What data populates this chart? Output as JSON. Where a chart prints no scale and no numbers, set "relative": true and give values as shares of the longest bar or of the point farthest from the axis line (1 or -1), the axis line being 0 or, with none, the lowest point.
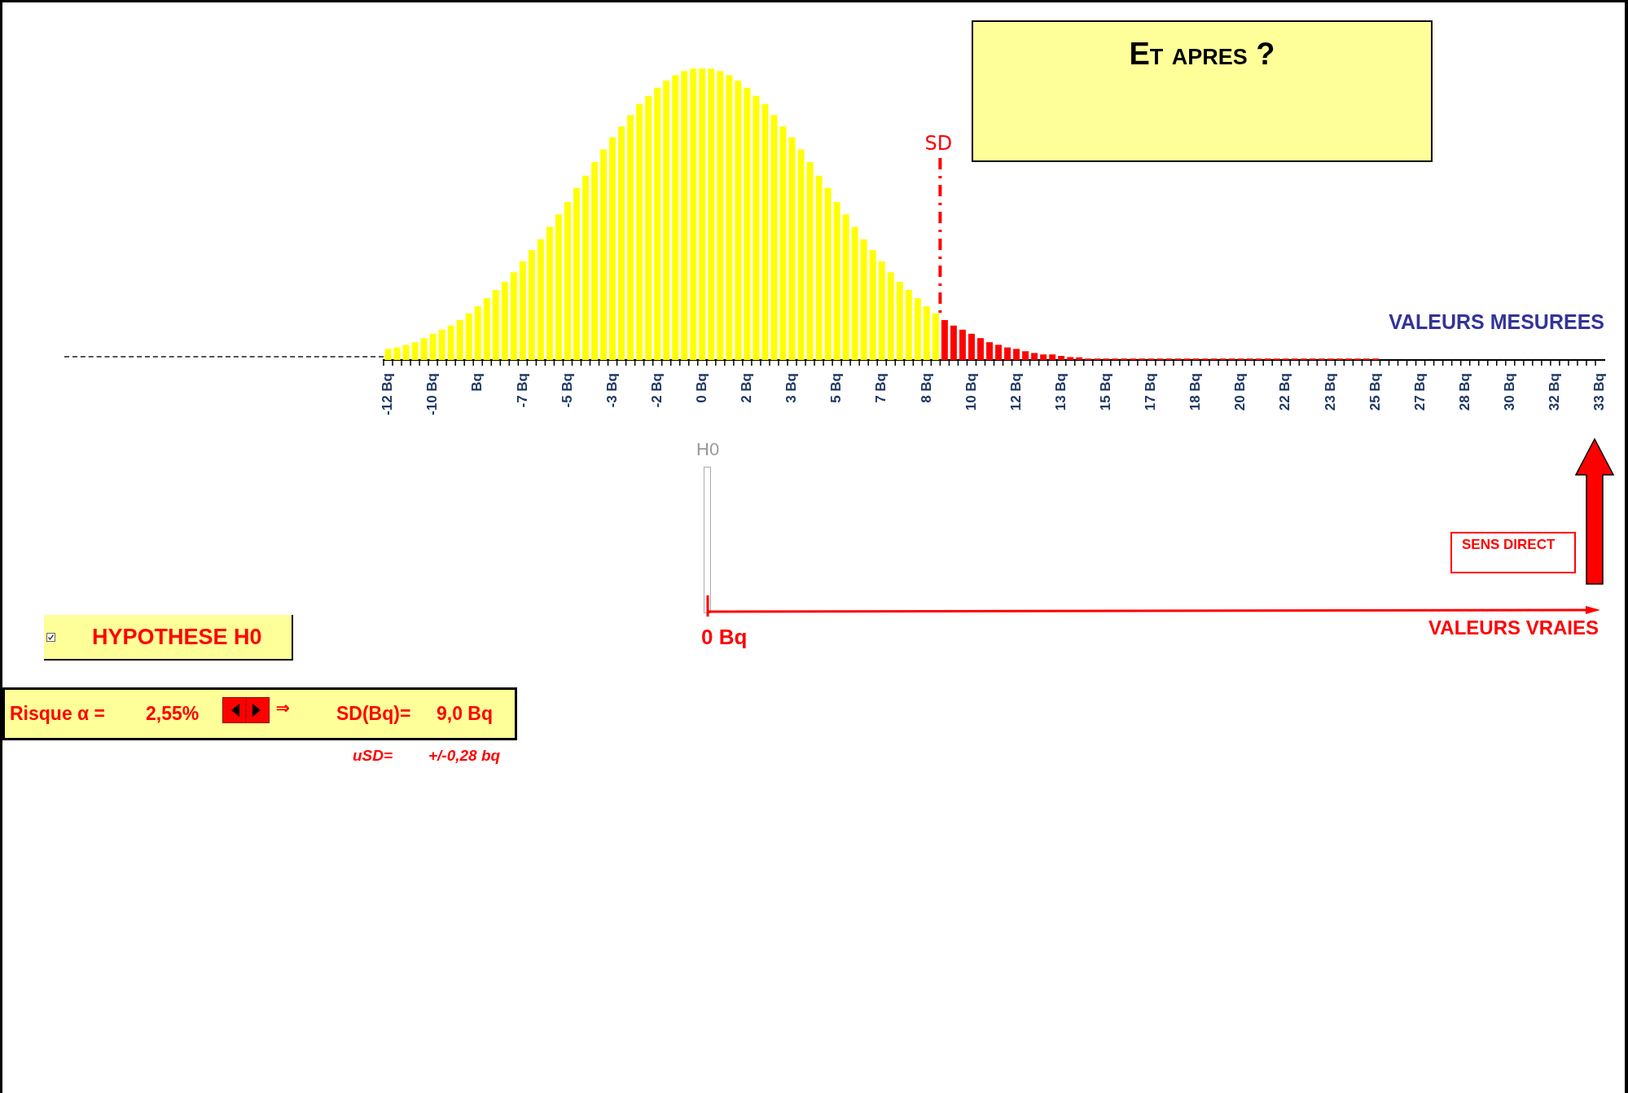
{
  "chart_data": {
    "type": "bar",
    "title": "Et apres ?",
    "xlabel": "VALEURS MESUREES",
    "relative": true,
    "categories": [
      "-12 Bq",
      null,
      null,
      null,
      null,
      "-10 Bq",
      null,
      null,
      null,
      null,
      "Bq",
      null,
      null,
      null,
      null,
      "-7 Bq",
      null,
      null,
      null,
      null,
      "-5 Bq",
      null,
      null,
      null,
      null,
      "-3 Bq",
      null,
      null,
      null,
      null,
      "-2 Bq",
      null,
      null,
      null,
      null,
      "0 Bq",
      null,
      null,
      null,
      null,
      "2 Bq",
      null,
      null,
      null,
      null,
      "3 Bq",
      null,
      null,
      null,
      null,
      "5 Bq",
      null,
      null,
      null,
      null,
      "7 Bq",
      null,
      null,
      null,
      null,
      "8 Bq",
      null,
      null,
      null,
      null,
      "10 Bq",
      null,
      null,
      null,
      null,
      "12 Bq",
      null,
      null,
      null,
      null,
      "13 Bq",
      null,
      null,
      null,
      null,
      "15 Bq",
      null,
      null,
      null,
      null,
      "17 Bq",
      null,
      null,
      null,
      null,
      "18 Bq",
      null,
      null,
      null,
      null,
      "20 Bq",
      null,
      null,
      null,
      null,
      "22 Bq",
      null,
      null,
      null,
      null,
      "23 Bq",
      null,
      null,
      null,
      null,
      "25 Bq",
      null,
      null,
      null,
      null,
      "27 Bq",
      null,
      null,
      null,
      null,
      "28 Bq",
      null,
      null,
      null,
      null,
      "30 Bq",
      null,
      null,
      null,
      null,
      "32 Bq",
      null,
      null,
      null,
      null,
      "33 Bq"
    ],
    "values": [
      0.038,
      0.043,
      0.052,
      0.061,
      0.075,
      0.09,
      0.104,
      0.118,
      0.137,
      0.16,
      0.184,
      0.212,
      0.24,
      0.268,
      0.301,
      0.339,
      0.377,
      0.414,
      0.457,
      0.499,
      0.542,
      0.59,
      0.632,
      0.679,
      0.722,
      0.764,
      0.801,
      0.84,
      0.878,
      0.906,
      0.934,
      0.958,
      0.977,
      0.991,
      0.999,
      1,
      0.999,
      0.991,
      0.977,
      0.958,
      0.934,
      0.906,
      0.878,
      0.84,
      0.801,
      0.764,
      0.722,
      0.679,
      0.632,
      0.59,
      0.542,
      0.499,
      0.457,
      0.414,
      0.377,
      0.339,
      0.301,
      0.268,
      0.24,
      0.212,
      0.184,
      0.16,
      0.137,
      0.118,
      0.104,
      0.09,
      0.075,
      0.061,
      0.052,
      0.043,
      0.038,
      0.03,
      0.024,
      0.019,
      0.019,
      0.014,
      0.01,
      0.009,
      0.005,
      0.005,
      0.005,
      0.005,
      0.005,
      0.005,
      0.005,
      0.005,
      0.005,
      0.005,
      0.005,
      0.005,
      0.005,
      0.005,
      0.005,
      0.005,
      0.005,
      0.005,
      0.005,
      0.005,
      0.005,
      0.005,
      0.005,
      0.005,
      0.005,
      0.005,
      0.005,
      0.005,
      0.005,
      0.005,
      0.005,
      0.005,
      0.005,
      0,
      0,
      0,
      0,
      0,
      0,
      0,
      0,
      0,
      0,
      0,
      0,
      0,
      0,
      0,
      0,
      0,
      0,
      0,
      0,
      0,
      0,
      0,
      0,
      0
    ],
    "colors": [
      "#ffff00",
      "#ffff00",
      "#ffff00",
      "#ffff00",
      "#ffff00",
      "#ffff00",
      "#ffff00",
      "#ffff00",
      "#ffff00",
      "#ffff00",
      "#ffff00",
      "#ffff00",
      "#ffff00",
      "#ffff00",
      "#ffff00",
      "#ffff00",
      "#ffff00",
      "#ffff00",
      "#ffff00",
      "#ffff00",
      "#ffff00",
      "#ffff00",
      "#ffff00",
      "#ffff00",
      "#ffff00",
      "#ffff00",
      "#ffff00",
      "#ffff00",
      "#ffff00",
      "#ffff00",
      "#ffff00",
      "#ffff00",
      "#ffff00",
      "#ffff00",
      "#ffff00",
      "#ffff00",
      "#ffff00",
      "#ffff00",
      "#ffff00",
      "#ffff00",
      "#ffff00",
      "#ffff00",
      "#ffff00",
      "#ffff00",
      "#ffff00",
      "#ffff00",
      "#ffff00",
      "#ffff00",
      "#ffff00",
      "#ffff00",
      "#ffff00",
      "#ffff00",
      "#ffff00",
      "#ffff00",
      "#ffff00",
      "#ffff00",
      "#ffff00",
      "#ffff00",
      "#ffff00",
      "#ffff00",
      "#ffff00",
      "#ffff00",
      "#ff0000",
      "#ff0000",
      "#ff0000",
      "#ff0000",
      "#ff0000",
      "#ff0000",
      "#ff0000",
      "#ff0000",
      "#ff0000",
      "#ff0000",
      "#ff0000",
      "#ff0000",
      "#ff0000",
      "#ff0000",
      "#ff0000",
      "#ff0000",
      "#ff0000",
      "#ff0000",
      "#ff0000",
      "#ff0000",
      "#ff0000",
      "#ff0000",
      "#ff0000",
      "#ff0000",
      "#ff0000",
      "#ff0000",
      "#ff0000",
      "#ff0000",
      "#ff0000",
      "#ff0000",
      "#ff0000",
      "#ff0000",
      "#ff0000",
      "#ff0000",
      "#ff0000",
      "#ff0000",
      "#ff0000",
      "#ff0000",
      "#ff0000",
      "#ff0000",
      "#ff0000",
      "#ff0000",
      "#ff0000",
      "#ff0000",
      "#ff0000",
      "#ff0000",
      "#ff0000",
      "#ff0000",
      "#ff0000",
      "#ff0000",
      "#ff0000",
      "#ff0000",
      "#ff0000",
      "#ff0000",
      "#ff0000",
      "#ff0000",
      "#ff0000",
      "#ff0000",
      "#ff0000",
      "#ff0000",
      "#ff0000",
      "#ff0000",
      "#ff0000",
      "#ff0000",
      "#ff0000",
      "#ff0000",
      "#ff0000",
      "#ff0000",
      "#ff0000",
      "#ff0000",
      "#ff0000",
      "#ff0000",
      "#ff0000",
      "#ff0000"
    ],
    "tick_labels": "x",
    "grid": false,
    "legend": false,
    "ref_lines": [
      {
        "axis": "x",
        "label": "SD",
        "color": "#ff0000",
        "line_style": "dashed"
      }
    ],
    "annotations": [
      "H0",
      "0 Bq",
      "VALEURS VRAIES",
      "SENS DIRECT",
      "HYPOTHESE H0",
      "Risque α =",
      "2,55%",
      "⇒",
      "SD(Bq)=",
      "9,0 Bq",
      "uSD=",
      "+/-0,28 bq"
    ]
  }
}
